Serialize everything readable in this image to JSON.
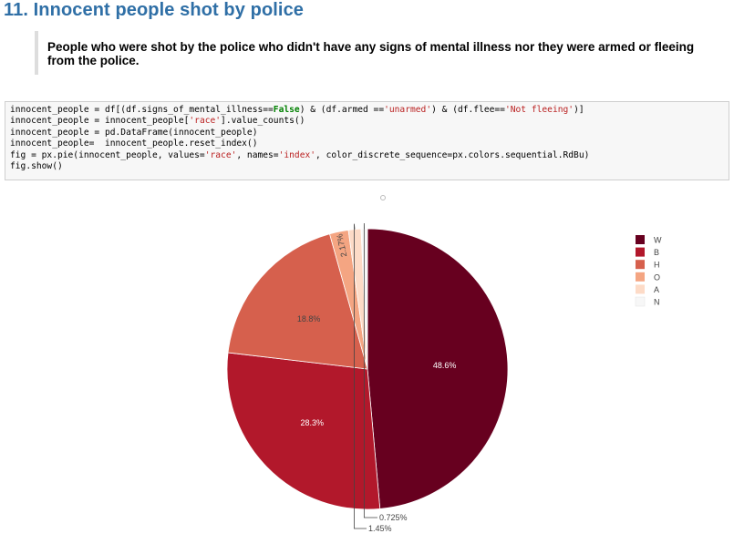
{
  "heading": "11. Innocent people shot by police",
  "quote": "People who were shot by the police who didn't have any signs of mental illness nor they were armed or fleeing from the police.",
  "code_lines": [
    [
      [
        "innocent_people = df[(df.signs_of_mental_illness==",
        ""
      ],
      [
        "False",
        "kw"
      ],
      [
        ") & (df.armed ==",
        ""
      ],
      [
        "'unarmed'",
        "str"
      ],
      [
        ") & (df.flee==",
        ""
      ],
      [
        "'Not fleeing'",
        "str"
      ],
      [
        ")]",
        ""
      ]
    ],
    [
      [
        "innocent_people = innocent_people[",
        ""
      ],
      [
        "'race'",
        "str"
      ],
      [
        "].value_counts()",
        ""
      ]
    ],
    [
      [
        "innocent_people = pd.DataFrame(innocent_people)",
        ""
      ]
    ],
    [
      [
        "innocent_people=  innocent_people.reset_index()",
        ""
      ]
    ],
    [
      [
        "fig = px.pie(innocent_people, values=",
        ""
      ],
      [
        "'race'",
        "str"
      ],
      [
        ", names=",
        ""
      ],
      [
        "'index'",
        "str"
      ],
      [
        ", color_discrete_sequence=px.colors.sequential.RdBu)",
        ""
      ]
    ],
    [
      [
        "fig.show()",
        ""
      ]
    ]
  ],
  "chart_data": {
    "type": "pie",
    "labels": [
      "W",
      "B",
      "H",
      "O",
      "A",
      "N"
    ],
    "values": [
      48.6,
      28.3,
      18.8,
      2.17,
      1.45,
      0.725
    ],
    "text_labels": [
      "48.6%",
      "28.3%",
      "18.8%",
      "2.17%",
      "1.45%",
      "0.725%"
    ],
    "colors": [
      "#67001f",
      "#b2182b",
      "#d6604d",
      "#f4a582",
      "#fddbc7",
      "#f7f7f7"
    ],
    "label_colors": [
      "#ffffff",
      "#ffffff",
      "#444444",
      "#444444",
      "#444444",
      "#444444"
    ],
    "legend_position": "top-right",
    "direction": "clockwise",
    "start": "top"
  }
}
